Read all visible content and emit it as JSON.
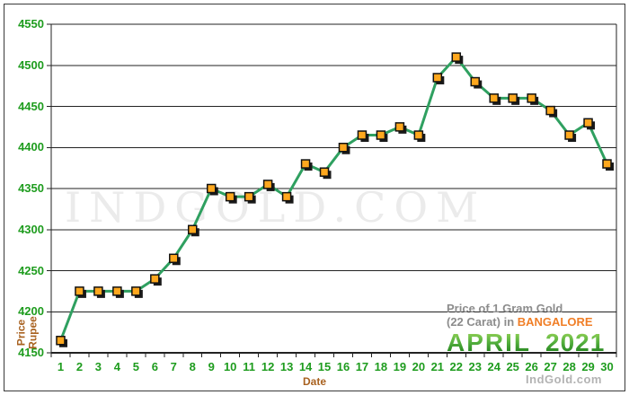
{
  "chart_data": {
    "type": "line",
    "title": "Price of 1 Gram Gold (22 Carat) in BANGALORE - APRIL 2021",
    "title_line1": "Price of 1 Gram Gold",
    "title_line2": "(22 Carat) in",
    "location": "BANGALORE",
    "month": "APRIL",
    "year": "2021",
    "xlabel": "Date",
    "ylabel_line1": "Price",
    "ylabel_line2": "Rupee",
    "watermark": "INDGOLD.COM",
    "footer_brand": "IndGold.com",
    "x": [
      1,
      2,
      3,
      4,
      5,
      6,
      7,
      8,
      9,
      10,
      11,
      12,
      13,
      14,
      15,
      16,
      17,
      18,
      19,
      20,
      21,
      22,
      23,
      24,
      25,
      26,
      27,
      28,
      29,
      30
    ],
    "values": [
      4165,
      4225,
      4225,
      4225,
      4225,
      4240,
      4265,
      4300,
      4350,
      4340,
      4340,
      4355,
      4340,
      4380,
      4370,
      4400,
      4415,
      4415,
      4425,
      4415,
      4485,
      4510,
      4480,
      4460,
      4460,
      4460,
      4445,
      4415,
      4430,
      4380
    ],
    "ylim": [
      4150,
      4550
    ],
    "ytick_step": 50,
    "grid": true,
    "legend": false,
    "colors": {
      "line": "#2fa060",
      "marker_fill": "#ffa81e",
      "marker_border": "#111111",
      "marker_shadow": "#1a1a1a",
      "axis_text_green": "#1e9c1e",
      "axis_title_brown": "#a8611f",
      "grid_line": "#222222",
      "title_gray": "#8c8c8c",
      "location_orange": "#f07e26",
      "month_green": "#2e8f22",
      "watermark_gray": "#ebebeb",
      "footer_gray": "#b3b3b3"
    }
  }
}
